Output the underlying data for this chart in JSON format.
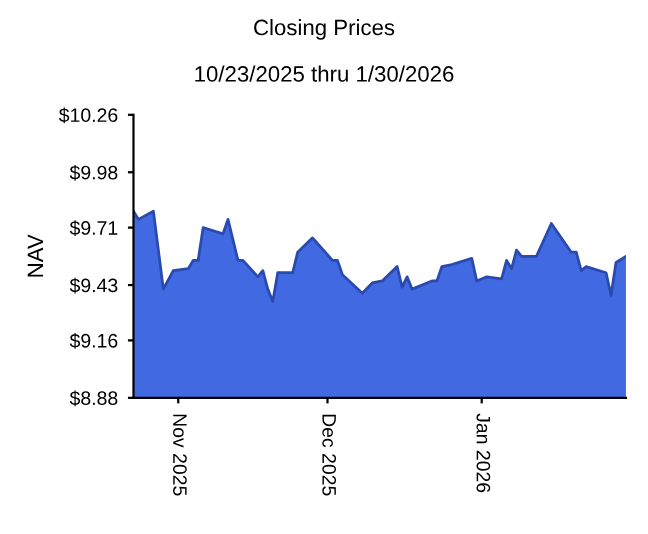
{
  "chart_data": {
    "type": "area",
    "title": "Closing Prices",
    "subtitle": "10/23/2025 thru 1/30/2026",
    "ylabel": "NAV",
    "x": [
      "2025-10-23",
      "2025-10-24",
      "2025-10-27",
      "2025-10-29",
      "2025-10-31",
      "2025-11-03",
      "2025-11-04",
      "2025-11-05",
      "2025-11-06",
      "2025-11-10",
      "2025-11-11",
      "2025-11-13",
      "2025-11-14",
      "2025-11-17",
      "2025-11-18",
      "2025-11-19",
      "2025-11-20",
      "2025-11-21",
      "2025-11-24",
      "2025-11-25",
      "2025-11-28",
      "2025-12-02",
      "2025-12-03",
      "2025-12-04",
      "2025-12-08",
      "2025-12-10",
      "2025-12-12",
      "2025-12-15",
      "2025-12-16",
      "2025-12-17",
      "2025-12-18",
      "2025-12-22",
      "2025-12-23",
      "2025-12-24",
      "2025-12-26",
      "2025-12-30",
      "2025-12-31",
      "2026-01-02",
      "2026-01-05",
      "2026-01-06",
      "2026-01-07",
      "2026-01-08",
      "2026-01-09",
      "2026-01-12",
      "2026-01-15",
      "2026-01-19",
      "2026-01-20",
      "2026-01-21",
      "2026-01-22",
      "2026-01-26",
      "2026-01-27",
      "2026-01-28",
      "2026-01-30"
    ],
    "series": [
      {
        "color": "#4169e1",
        "values": [
          9.79,
          9.75,
          9.79,
          9.41,
          9.5,
          9.51,
          9.55,
          9.55,
          9.71,
          9.68,
          9.75,
          9.55,
          9.55,
          9.47,
          9.5,
          9.41,
          9.35,
          9.49,
          9.49,
          9.59,
          9.66,
          9.55,
          9.55,
          9.48,
          9.39,
          9.44,
          9.45,
          9.52,
          9.42,
          9.47,
          9.41,
          9.45,
          9.45,
          9.52,
          9.53,
          9.56,
          9.45,
          9.47,
          9.46,
          9.55,
          9.51,
          9.6,
          9.57,
          9.57,
          9.73,
          9.59,
          9.59,
          9.5,
          9.52,
          9.49,
          9.38,
          9.54,
          9.57
        ]
      }
    ],
    "xlim": [
      "2025-10-23",
      "2026-01-30"
    ],
    "xticks": [
      {
        "value": "2025-11-01",
        "label": "Nov 2025"
      },
      {
        "value": "2025-12-01",
        "label": "Dec 2025"
      },
      {
        "value": "2026-01-01",
        "label": "Jan 2026"
      }
    ],
    "ylim": [
      8.88,
      10.26
    ],
    "yticks": [
      {
        "value": 8.88,
        "label": "$8.88"
      },
      {
        "value": 9.16,
        "label": "$9.16"
      },
      {
        "value": 9.43,
        "label": "$9.43"
      },
      {
        "value": 9.71,
        "label": "$9.71"
      },
      {
        "value": 9.98,
        "label": "$9.98"
      },
      {
        "value": 10.26,
        "label": "$10.26"
      }
    ],
    "grid": false,
    "legend": false
  }
}
